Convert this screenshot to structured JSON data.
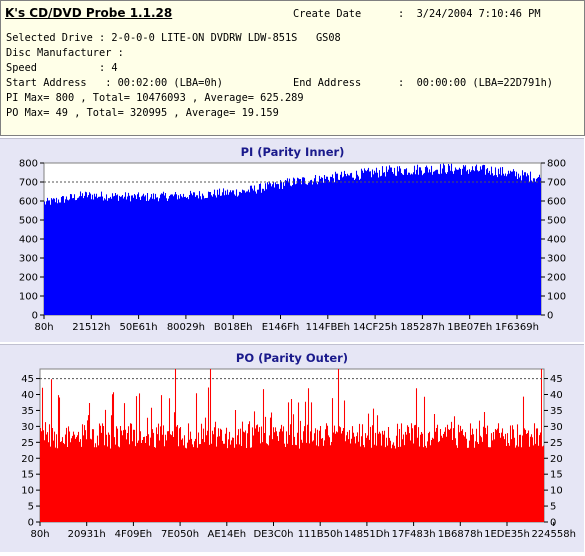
{
  "info": {
    "app_title": "K's CD/DVD Probe 1.1.28",
    "create_date_label": "Create Date",
    "create_date_value": ":  3/24/2004 7:10:46 PM",
    "drive_line": "Selected Drive : 2-0-0-0 LITE-ON DVDRW LDW-851S   GS08",
    "manufacturer_line": "Disc Manufacturer :",
    "speed_line": "Speed          : 4",
    "start_address_line": "Start Address   : 00:02:00 (LBA=0h)",
    "end_address_label": "End Address",
    "end_address_value": ":  00:00:00 (LBA=22D791h)",
    "pi_line": "PI Max= 800 , Total= 10476093 , Average= 625.289",
    "po_line": "PO Max= 49 , Total= 320995 , Average= 19.159"
  },
  "chart_data": [
    {
      "type": "area",
      "title": "PI (Parity Inner)",
      "color": "#0000ff",
      "ylim": [
        0,
        800
      ],
      "yticks": [
        0,
        100,
        200,
        300,
        400,
        500,
        600,
        700,
        800
      ],
      "xticks": [
        "80h",
        "21512h",
        "50E61h",
        "80029h",
        "B018Eh",
        "E146Fh",
        "114FBEh",
        "14CF25h",
        "185287h",
        "1BE07Eh",
        "1F6369h"
      ],
      "reference_line": 700,
      "max": 800,
      "average": 625.289,
      "envelope_x": [
        0,
        0.08,
        0.2,
        0.3,
        0.4,
        0.5,
        0.6,
        0.7,
        0.8,
        0.9,
        1.0
      ],
      "envelope_y": [
        590,
        630,
        620,
        630,
        650,
        700,
        730,
        760,
        770,
        760,
        720
      ]
    },
    {
      "type": "area",
      "title": "PO (Parity Outer)",
      "color": "#ff0000",
      "ylim": [
        0,
        48
      ],
      "yticks": [
        0,
        5,
        10,
        15,
        20,
        25,
        30,
        35,
        40,
        45
      ],
      "xticks": [
        "80h",
        "20931h",
        "4F09Eh",
        "7E050h",
        "AE14Eh",
        "DE3C0h",
        "111B50h",
        "14851Dh",
        "17F483h",
        "1B6878h",
        "1EDE35h",
        "224558h"
      ],
      "reference_line": 45,
      "max": 49,
      "average": 19.159,
      "envelope_x": [
        0,
        0.5,
        1.0
      ],
      "envelope_y": [
        27,
        27,
        27
      ]
    }
  ]
}
